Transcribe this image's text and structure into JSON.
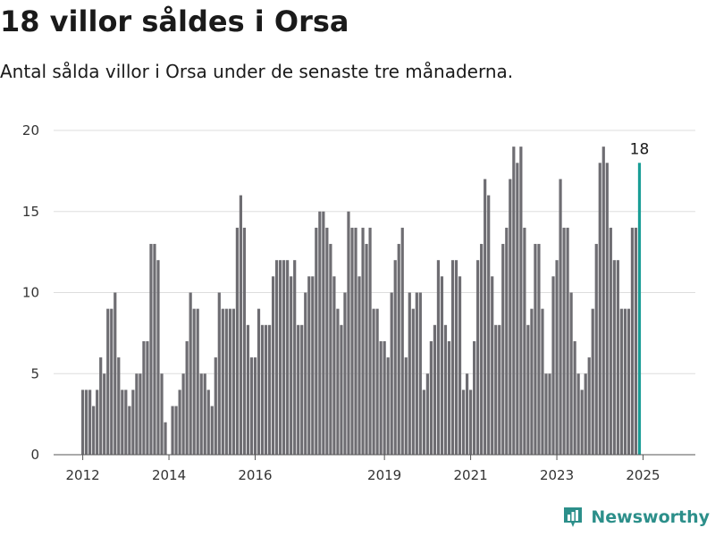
{
  "header": {
    "title": "18 villor såldes i Orsa",
    "subtitle": "Antal sålda villor i Orsa under de senaste tre månaderna."
  },
  "brand": {
    "name": "Newsworthy",
    "icon": "newsworthy-logo-icon",
    "color": "#2c8f8a"
  },
  "colors": {
    "bar": "#6e6d72",
    "highlight": "#1a9e96",
    "grid": "#dddddd",
    "axis": "#555555"
  },
  "chart_data": {
    "type": "bar",
    "title": "18 villor såldes i Orsa",
    "subtitle": "Antal sålda villor i Orsa under de senaste tre månaderna.",
    "xlabel": "",
    "ylabel": "",
    "ylim": [
      0,
      20
    ],
    "yticks": [
      0,
      5,
      10,
      15,
      20
    ],
    "xticks": [
      {
        "label": "2012",
        "index": 0
      },
      {
        "label": "2014",
        "index": 24
      },
      {
        "label": "2016",
        "index": 48
      },
      {
        "label": "2019",
        "index": 84
      },
      {
        "label": "2021",
        "index": 108
      },
      {
        "label": "2023",
        "index": 132
      },
      {
        "label": "2025",
        "index": 156
      }
    ],
    "x_start": "2012-01",
    "frequency": "monthly, rolling three-month total",
    "grid": true,
    "highlight_last": true,
    "last_label": "18",
    "values": [
      4,
      4,
      4,
      3,
      4,
      6,
      5,
      9,
      9,
      10,
      6,
      4,
      4,
      3,
      4,
      5,
      5,
      7,
      7,
      13,
      13,
      12,
      5,
      2,
      0,
      3,
      3,
      4,
      5,
      7,
      10,
      9,
      9,
      5,
      5,
      4,
      3,
      6,
      10,
      9,
      9,
      9,
      9,
      14,
      16,
      14,
      8,
      6,
      6,
      9,
      8,
      8,
      8,
      11,
      12,
      12,
      12,
      12,
      11,
      12,
      8,
      8,
      10,
      11,
      11,
      14,
      15,
      15,
      14,
      13,
      11,
      9,
      8,
      10,
      15,
      14,
      14,
      11,
      14,
      13,
      14,
      9,
      9,
      7,
      7,
      6,
      10,
      12,
      13,
      14,
      6,
      10,
      9,
      10,
      10,
      4,
      5,
      7,
      8,
      12,
      11,
      8,
      7,
      12,
      12,
      11,
      4,
      5,
      4,
      7,
      12,
      13,
      17,
      16,
      11,
      8,
      8,
      13,
      14,
      17,
      19,
      18,
      19,
      14,
      8,
      9,
      13,
      13,
      9,
      5,
      5,
      11,
      12,
      17,
      14,
      14,
      10,
      7,
      5,
      4,
      5,
      6,
      9,
      13,
      18,
      19,
      18,
      14,
      12,
      12,
      9,
      9,
      9,
      14,
      14,
      18
    ]
  }
}
